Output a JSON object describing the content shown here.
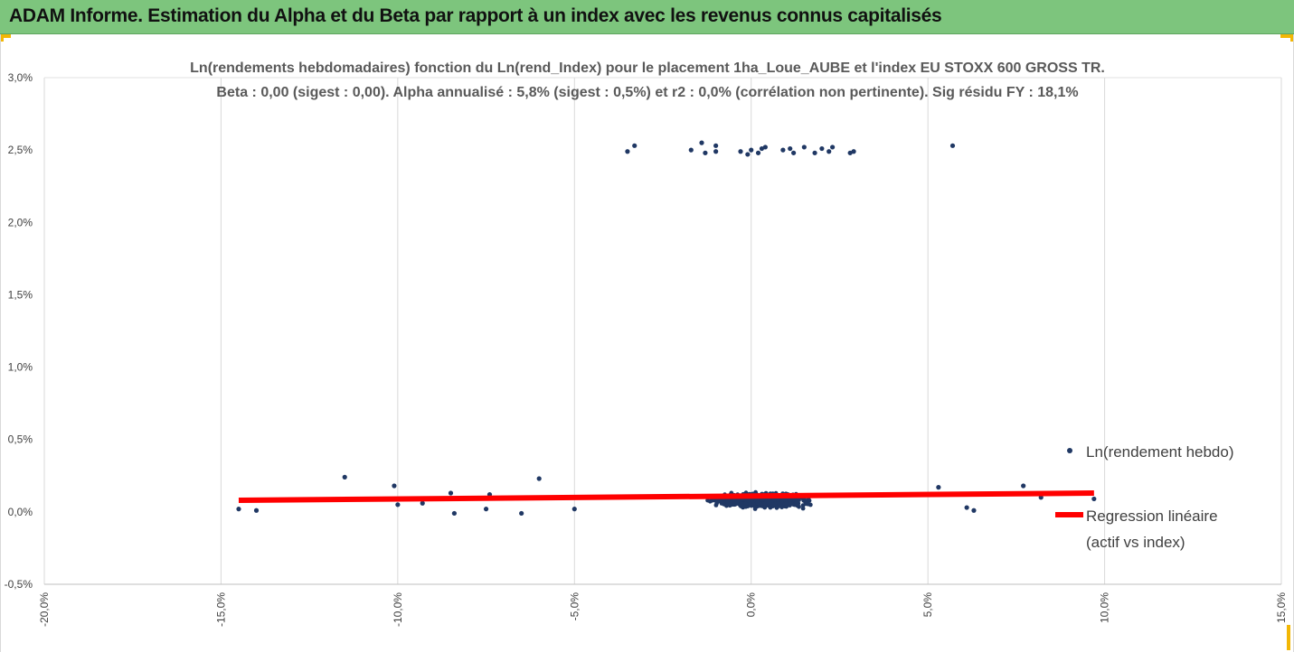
{
  "banner": {
    "title": "ADAM Informe. Estimation du Alpha et du Beta par rapport à un index avec les revenus connus capitalisés"
  },
  "colors": {
    "banner_bg": "#7dc57d",
    "corner_marks": "#f2b705",
    "points": "#203864",
    "regression": "#ff0000",
    "grid": "#d9d9d9"
  },
  "chart_data": {
    "type": "scatter",
    "title_lines": [
      "Ln(rendements hebdomadaires) fonction du Ln(rend_Index) pour le placement 1ha_Loue_AUBE et l'index EU STOXX 600 GROSS TR.",
      "Beta : 0,00 (sigest : 0,00).  Alpha annualisé : 5,8% (sigest : 0,5%) et r2 : 0,0% (corrélation non pertinente). Sig résidu FY : 18,1%"
    ],
    "xlabel": "",
    "ylabel": "",
    "xlim": [
      -20,
      15
    ],
    "ylim": [
      -0.5,
      3.0
    ],
    "x_ticks": [
      "-20,0%",
      "-15,0%",
      "-10,0%",
      "-5,0%",
      "0,0%",
      "5,0%",
      "10,0%",
      "15,0%"
    ],
    "x_tick_values": [
      -20,
      -15,
      -10,
      -5,
      0,
      5,
      10,
      15
    ],
    "y_ticks": [
      "3,0%",
      "2,5%",
      "2,0%",
      "1,5%",
      "1,0%",
      "0,5%",
      "0,0%",
      "-0,5%"
    ],
    "y_tick_values": [
      3.0,
      2.5,
      2.0,
      1.5,
      1.0,
      0.5,
      0.0,
      -0.5
    ],
    "grid": "vertical",
    "legend_position": "right",
    "series": [
      {
        "name": "Ln(rendement hebdo)",
        "kind": "points",
        "cluster_points": [
          {
            "x": -14.5,
            "y": 0.02
          },
          {
            "x": -14.0,
            "y": 0.01
          },
          {
            "x": -11.5,
            "y": 0.24
          },
          {
            "x": -10.1,
            "y": 0.18
          },
          {
            "x": -10.0,
            "y": 0.05
          },
          {
            "x": -9.3,
            "y": 0.06
          },
          {
            "x": -8.5,
            "y": 0.13
          },
          {
            "x": -8.4,
            "y": -0.01
          },
          {
            "x": -7.5,
            "y": 0.02
          },
          {
            "x": -7.4,
            "y": 0.12
          },
          {
            "x": -6.5,
            "y": -0.01
          },
          {
            "x": -6.0,
            "y": 0.23
          },
          {
            "x": -5.0,
            "y": 0.02
          },
          {
            "x": 5.3,
            "y": 0.17
          },
          {
            "x": 6.1,
            "y": 0.03
          },
          {
            "x": 6.3,
            "y": 0.01
          },
          {
            "x": 7.7,
            "y": 0.18
          },
          {
            "x": 8.2,
            "y": 0.1
          },
          {
            "x": 9.7,
            "y": 0.09
          }
        ],
        "cluster_note": "Dense cloud of weekly returns centered near x=0%, y between 0,0% and 0,25%",
        "high_points": [
          {
            "x": -3.5,
            "y": 2.49
          },
          {
            "x": -3.3,
            "y": 2.53
          },
          {
            "x": -1.7,
            "y": 2.5
          },
          {
            "x": -1.4,
            "y": 2.55
          },
          {
            "x": -1.3,
            "y": 2.48
          },
          {
            "x": -1.0,
            "y": 2.53
          },
          {
            "x": -1.0,
            "y": 2.49
          },
          {
            "x": -0.3,
            "y": 2.49
          },
          {
            "x": -0.1,
            "y": 2.47
          },
          {
            "x": 0.0,
            "y": 2.5
          },
          {
            "x": 0.2,
            "y": 2.48
          },
          {
            "x": 0.3,
            "y": 2.51
          },
          {
            "x": 0.4,
            "y": 2.52
          },
          {
            "x": 0.9,
            "y": 2.5
          },
          {
            "x": 1.1,
            "y": 2.51
          },
          {
            "x": 1.2,
            "y": 2.48
          },
          {
            "x": 1.5,
            "y": 2.52
          },
          {
            "x": 1.8,
            "y": 2.48
          },
          {
            "x": 2.0,
            "y": 2.51
          },
          {
            "x": 2.2,
            "y": 2.49
          },
          {
            "x": 2.3,
            "y": 2.52
          },
          {
            "x": 2.8,
            "y": 2.48
          },
          {
            "x": 2.9,
            "y": 2.49
          },
          {
            "x": 5.7,
            "y": 2.53
          }
        ]
      },
      {
        "name": "Regression linéaire (actif vs index)",
        "name_lines": [
          "Regression linéaire",
          "(actif vs index)"
        ],
        "kind": "line",
        "x": [
          -14.5,
          9.7
        ],
        "y": [
          0.08,
          0.13
        ]
      }
    ]
  }
}
